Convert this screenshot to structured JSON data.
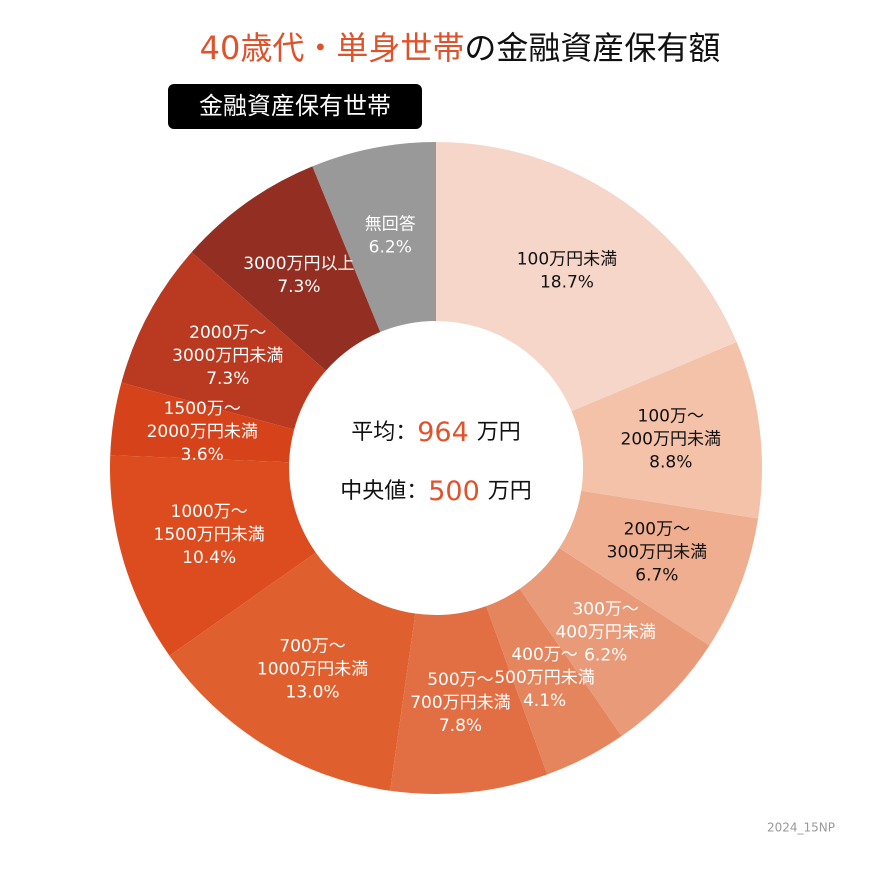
{
  "chart_data": {
    "type": "donut",
    "title": {
      "highlight": "40歳代・単身世帯",
      "rest": "の金融資産保有額",
      "highlight_color": "#e0522a"
    },
    "subtitle": "金融資産保有世帯",
    "center": {
      "mean_label": "平均：",
      "mean": 964,
      "median_label": "中央値：",
      "median": 500,
      "unit": "万円",
      "value_color": "#e0522a"
    },
    "categories": [
      "100万円未満",
      "100万～200万円未満",
      "200万～300万円未満",
      "300万～400万円未満",
      "400万～500万円未満",
      "500万～700万円未満",
      "700万～1000万円未満",
      "1000万～1500万円未満",
      "1500万～2000万円未満",
      "2000万～3000万円未満",
      "3000万円以上",
      "無回答"
    ],
    "values": [
      18.7,
      8.8,
      6.7,
      6.2,
      4.1,
      7.8,
      13.0,
      10.4,
      3.6,
      7.3,
      7.3,
      6.2
    ],
    "value_labels": [
      "18.7%",
      "8.8%",
      "6.7%",
      "6.2%",
      "4.1%",
      "7.8%",
      "13.0%",
      "10.4%",
      "3.6%",
      "7.3%",
      "7.3%",
      "6.2%"
    ],
    "colors": [
      "#f5d6c9",
      "#f4c1a9",
      "#efae8f",
      "#e99a79",
      "#e5855e",
      "#e26e44",
      "#df5f2e",
      "#dc4c1f",
      "#d6421a",
      "#b93a20",
      "#932e22",
      "#999999"
    ],
    "note": "2024_15NP"
  }
}
